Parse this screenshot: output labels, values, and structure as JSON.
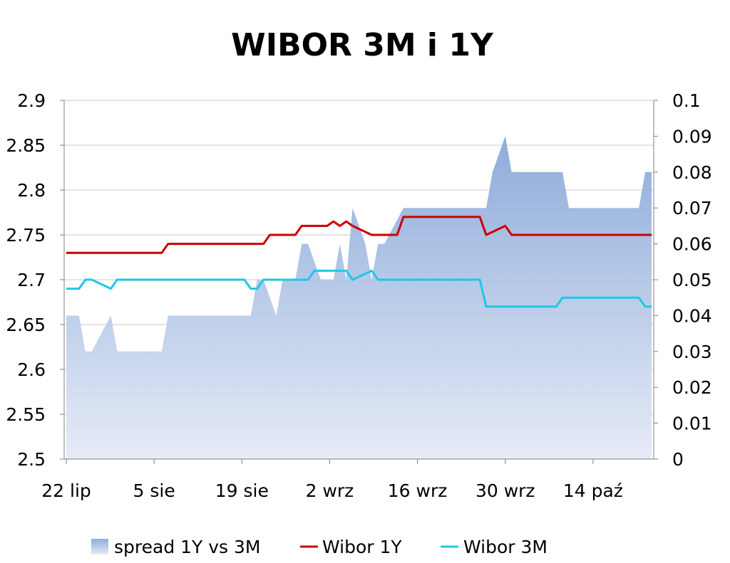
{
  "chart_data": {
    "type": "line",
    "title": "WIBOR 3M i 1Y",
    "x_tick_labels": [
      "22 lip",
      "5 sie",
      "19 sie",
      "2 wrz",
      "16 wrz",
      "30 wrz",
      "14 paź"
    ],
    "y_left": {
      "ylim": [
        2.5,
        2.9
      ],
      "ticks": [
        "2.5",
        "2.55",
        "2.6",
        "2.65",
        "2.7",
        "2.75",
        "2.8",
        "2.85",
        "2.9"
      ]
    },
    "y_right": {
      "ylim": [
        0,
        0.1
      ],
      "ticks": [
        "0",
        "0.01",
        "0.02",
        "0.03",
        "0.04",
        "0.05",
        "0.06",
        "0.07",
        "0.08",
        "0.09",
        "0.1"
      ]
    },
    "grid": true,
    "legend_position": "bottom",
    "colors": {
      "spread_top": "#8eacdb",
      "spread_bottom": "#e6ebf6",
      "wibor_1y": "#cc0000",
      "wibor_3m": "#1ec8e6",
      "grid": "#c8c8c8",
      "axis": "#7f7f7f"
    },
    "series": [
      {
        "name": "spread 1Y vs 3M",
        "kind": "area",
        "axis": "right",
        "x": [
          0,
          2,
          3,
          4,
          7,
          8,
          15,
          16,
          29,
          30,
          31,
          33,
          34,
          36,
          37,
          38,
          40,
          41,
          42,
          43,
          44,
          45,
          47,
          48,
          49,
          50,
          53,
          54,
          66,
          67,
          69,
          70,
          78,
          79,
          90,
          91,
          92
        ],
        "values": [
          0.04,
          0.04,
          0.03,
          0.03,
          0.04,
          0.03,
          0.03,
          0.04,
          0.04,
          0.05,
          0.05,
          0.04,
          0.05,
          0.05,
          0.06,
          0.06,
          0.05,
          0.05,
          0.05,
          0.06,
          0.05,
          0.07,
          0.06,
          0.05,
          0.06,
          0.06,
          0.07,
          0.07,
          0.07,
          0.08,
          0.09,
          0.08,
          0.08,
          0.07,
          0.07,
          0.08,
          0.08
        ]
      },
      {
        "name": "Wibor 1Y",
        "kind": "line",
        "axis": "left",
        "x": [
          0,
          15,
          16,
          31,
          32,
          36,
          37,
          41,
          42,
          43,
          44,
          45,
          48,
          52,
          53,
          65,
          66,
          69,
          70,
          92
        ],
        "values": [
          2.73,
          2.73,
          2.74,
          2.74,
          2.75,
          2.75,
          2.76,
          2.76,
          2.765,
          2.76,
          2.765,
          2.76,
          2.75,
          2.75,
          2.77,
          2.77,
          2.75,
          2.76,
          2.75,
          2.75
        ]
      },
      {
        "name": "Wibor 3M",
        "kind": "line",
        "axis": "left",
        "x": [
          0,
          2,
          3,
          4,
          7,
          8,
          28,
          29,
          30,
          31,
          38,
          39,
          44,
          45,
          48,
          49,
          65,
          66,
          77,
          78,
          90,
          91,
          92
        ],
        "values": [
          2.69,
          2.69,
          2.7,
          2.7,
          2.69,
          2.7,
          2.7,
          2.69,
          2.69,
          2.7,
          2.7,
          2.71,
          2.71,
          2.7,
          2.71,
          2.7,
          2.7,
          2.67,
          2.67,
          2.68,
          2.68,
          2.67,
          2.67
        ]
      }
    ]
  }
}
